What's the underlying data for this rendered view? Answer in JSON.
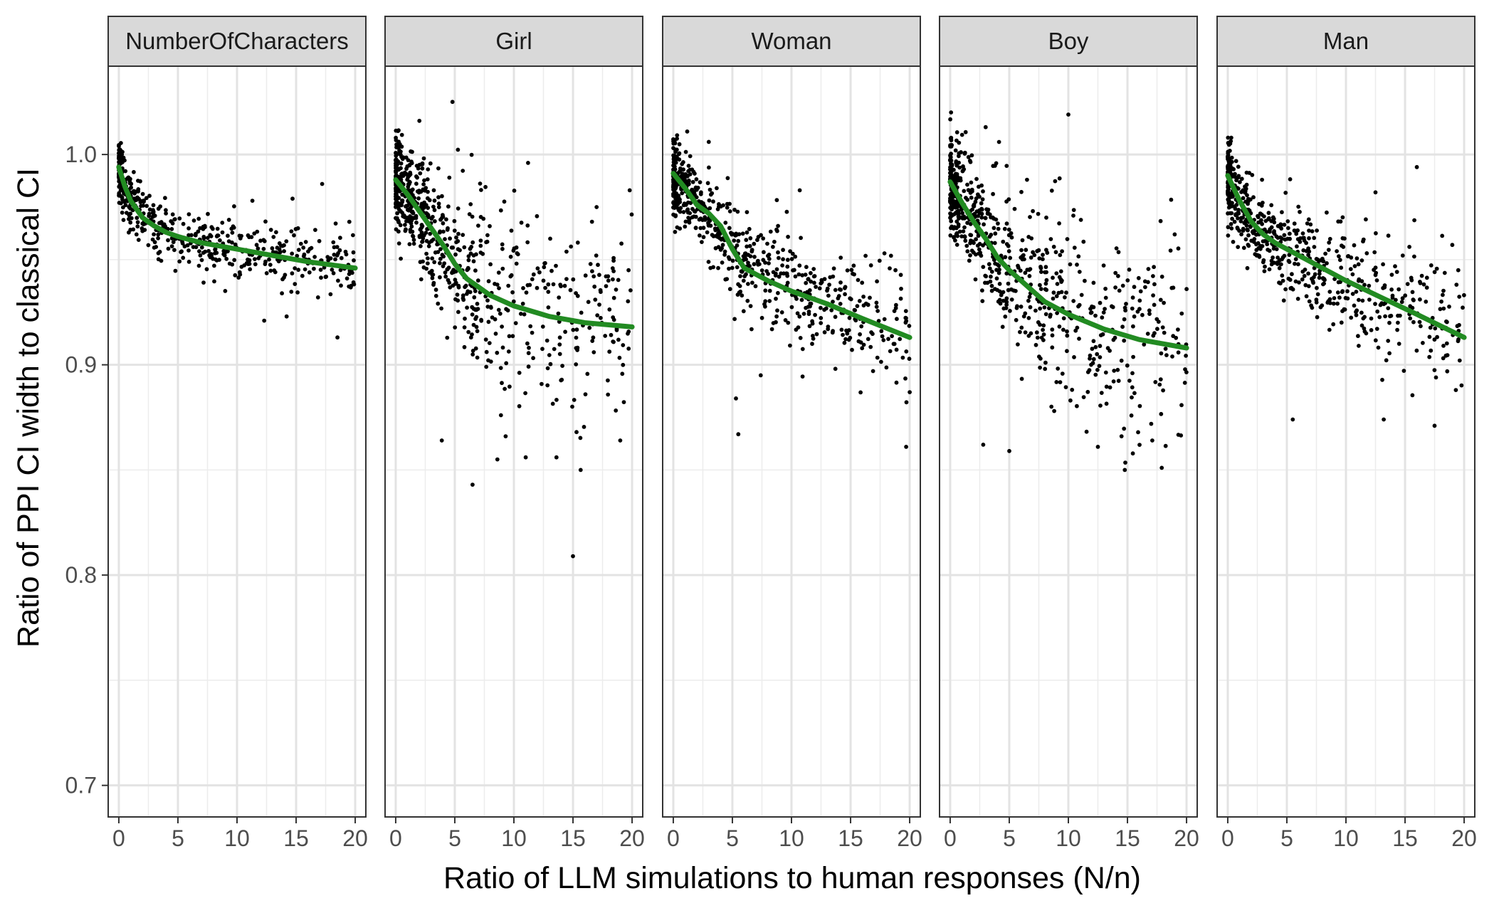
{
  "chart_data": {
    "type": "scatter",
    "xlabel": "Ratio of LLM simulations to human responses (N/n)",
    "ylabel": "Ratio of PPI CI width to classical CI",
    "xlim": [
      -0.9,
      20.9
    ],
    "ylim": [
      0.685,
      1.042
    ],
    "x_ticks": [
      0,
      5,
      10,
      15,
      20
    ],
    "y_ticks": [
      0.7,
      0.8,
      0.9,
      1.0
    ],
    "y_tick_labels": [
      "0.7",
      "0.8",
      "0.9",
      "1.0"
    ],
    "grid": true,
    "point_color": "#000000",
    "smooth_color": "#228B22",
    "panels": [
      {
        "name": "NumberOfCharacters",
        "smooth": [
          [
            0,
            0.994
          ],
          [
            0.5,
            0.985
          ],
          [
            1,
            0.978
          ],
          [
            2,
            0.97
          ],
          [
            3,
            0.966
          ],
          [
            4,
            0.963
          ],
          [
            5,
            0.961
          ],
          [
            7,
            0.958
          ],
          [
            10,
            0.955
          ],
          [
            13,
            0.952
          ],
          [
            16,
            0.949
          ],
          [
            20,
            0.946
          ]
        ],
        "scatter_cloud": {
          "n": 520,
          "spread_near": 0.012,
          "spread_far": 0.012
        },
        "extra_points": [
          [
            12.3,
            0.921
          ],
          [
            14.2,
            0.923
          ],
          [
            17.2,
            0.986
          ],
          [
            18.5,
            0.913
          ],
          [
            19.5,
            0.968
          ],
          [
            14.7,
            0.979
          ],
          [
            11.3,
            0.978
          ],
          [
            13.8,
            0.934
          ]
        ]
      },
      {
        "name": "Girl",
        "smooth": [
          [
            0,
            0.988
          ],
          [
            1,
            0.981
          ],
          [
            2,
            0.973
          ],
          [
            3,
            0.965
          ],
          [
            4,
            0.957
          ],
          [
            5,
            0.948
          ],
          [
            6,
            0.941
          ],
          [
            8,
            0.933
          ],
          [
            10,
            0.928
          ],
          [
            13,
            0.923
          ],
          [
            16,
            0.92
          ],
          [
            20,
            0.918
          ]
        ],
        "scatter_cloud": {
          "n": 700,
          "spread_near": 0.018,
          "spread_far": 0.04
        },
        "extra_points": [
          [
            4.8,
            1.025
          ],
          [
            2,
            1.016
          ],
          [
            6.5,
            0.843
          ],
          [
            8.6,
            0.855
          ],
          [
            11,
            0.856
          ],
          [
            13.6,
            0.856
          ],
          [
            15,
            0.809
          ],
          [
            19.8,
            0.983
          ],
          [
            17,
            0.975
          ],
          [
            3.9,
            0.864
          ],
          [
            19,
            0.864
          ],
          [
            9.3,
            0.866
          ],
          [
            19.7,
            0.945
          ],
          [
            11.2,
            0.996
          ],
          [
            15.3,
            0.868
          ],
          [
            12.5,
            0.94
          ]
        ]
      },
      {
        "name": "Woman",
        "smooth": [
          [
            0,
            0.991
          ],
          [
            1,
            0.984
          ],
          [
            2,
            0.976
          ],
          [
            3,
            0.972
          ],
          [
            4,
            0.966
          ],
          [
            5,
            0.955
          ],
          [
            6,
            0.946
          ],
          [
            8,
            0.94
          ],
          [
            10,
            0.935
          ],
          [
            13,
            0.929
          ],
          [
            16,
            0.922
          ],
          [
            20,
            0.913
          ]
        ],
        "scatter_cloud": {
          "n": 660,
          "spread_near": 0.015,
          "spread_far": 0.022
        },
        "extra_points": [
          [
            3,
            1.006
          ],
          [
            5.5,
            0.867
          ],
          [
            5.3,
            0.884
          ],
          [
            19.7,
            0.861
          ],
          [
            20,
            0.887
          ],
          [
            10.7,
            0.983
          ],
          [
            16.9,
            0.897
          ],
          [
            18.8,
            0.945
          ],
          [
            7.4,
            0.895
          ]
        ]
      },
      {
        "name": "Boy",
        "smooth": [
          [
            0,
            0.987
          ],
          [
            1,
            0.977
          ],
          [
            2,
            0.968
          ],
          [
            3,
            0.96
          ],
          [
            4,
            0.951
          ],
          [
            5,
            0.945
          ],
          [
            6,
            0.94
          ],
          [
            8,
            0.93
          ],
          [
            10,
            0.924
          ],
          [
            13,
            0.917
          ],
          [
            16,
            0.912
          ],
          [
            20,
            0.908
          ]
        ],
        "scatter_cloud": {
          "n": 700,
          "spread_near": 0.02,
          "spread_far": 0.04
        },
        "extra_points": [
          [
            10,
            1.019
          ],
          [
            3,
            1.013
          ],
          [
            2.8,
            0.862
          ],
          [
            5,
            0.859
          ],
          [
            17.9,
            0.851
          ],
          [
            17.1,
            0.864
          ],
          [
            14.5,
            0.866
          ],
          [
            19,
            0.962
          ],
          [
            20,
            0.936
          ],
          [
            8.8,
            0.878
          ],
          [
            12.5,
            0.861
          ],
          [
            6.5,
            0.988
          ]
        ]
      },
      {
        "name": "Man",
        "smooth": [
          [
            0,
            0.99
          ],
          [
            1,
            0.978
          ],
          [
            2,
            0.968
          ],
          [
            3,
            0.962
          ],
          [
            4,
            0.958
          ],
          [
            5,
            0.955
          ],
          [
            7,
            0.949
          ],
          [
            10,
            0.94
          ],
          [
            13,
            0.932
          ],
          [
            16,
            0.924
          ],
          [
            20,
            0.913
          ]
        ],
        "scatter_cloud": {
          "n": 640,
          "spread_near": 0.014,
          "spread_far": 0.025
        },
        "extra_points": [
          [
            16,
            0.994
          ],
          [
            12.5,
            0.982
          ],
          [
            5.5,
            0.874
          ],
          [
            13.2,
            0.874
          ],
          [
            17.5,
            0.871
          ],
          [
            19.5,
            0.945
          ],
          [
            19.3,
            0.888
          ],
          [
            14.5,
            0.91
          ],
          [
            0.3,
            1.008
          ],
          [
            19,
            0.957
          ]
        ]
      }
    ]
  }
}
